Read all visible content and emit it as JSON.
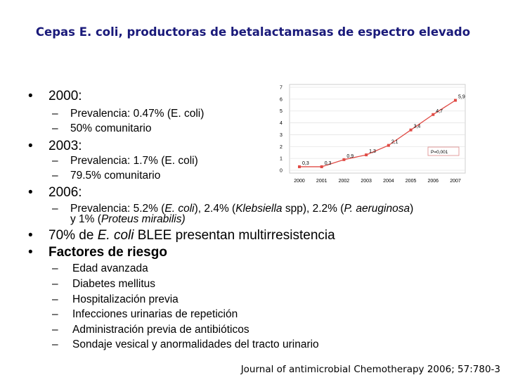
{
  "title": "Cepas E. coli, productoras de betalactamasas de espectro elevado",
  "bullets": {
    "y2000": {
      "year": "2000",
      "colon": ":",
      "lines": [
        "Prevalencia: 0.47% (E. coli)",
        "50% comunitario"
      ]
    },
    "y2003": {
      "year": "2003",
      "colon": ":",
      "lines": [
        "Prevalencia: 1.7% (E. coli)",
        "79.5% comunitario"
      ]
    },
    "y2006": {
      "year": "2006",
      "colon": ":",
      "line_a": "Prevalencia: 5.2%  (",
      "line_a_it1": "E. coli",
      "line_a_b": "), 2.4% (",
      "line_a_it2": "Klebsiella",
      "line_a_c": " spp), 2.2% (",
      "line_a_it3": "P. aeruginosa",
      "line_a_d": ")",
      "line_b": "y 1% (",
      "line_b_it": "Proteus mirabilis)"
    },
    "blee": {
      "pre": "70%  de ",
      "italic": "E. coli",
      "post": " BLEE presentan multirresistencia"
    },
    "factors": {
      "heading": "Factores de riesgo",
      "items": [
        "Edad avanzada",
        "Diabetes mellitus",
        "Hospitalización previa",
        "Infecciones urinarias de repetición",
        "Administración previa de antibióticos",
        "Sondaje vesical y anormalidades del tracto urinario"
      ]
    }
  },
  "bullet_char": "•",
  "dash_char": "–",
  "citation": "Journal of antimicrobial Chemotherapy 2006; 57:780-3",
  "chart_data": {
    "type": "line",
    "x": [
      "2000",
      "2001",
      "2002",
      "2003",
      "2004",
      "2005",
      "2006",
      "2007"
    ],
    "series": [
      {
        "values": [
          0.3,
          0.3,
          0.9,
          1.3,
          2.1,
          3.4,
          4.7,
          5.9
        ]
      }
    ],
    "data_labels": [
      "0,3",
      "0,3",
      "0,9",
      "1,3",
      "2,1",
      "3,4",
      "4,7",
      "5,9"
    ],
    "yticks": [
      "0",
      "1",
      "2",
      "3",
      "4",
      "5",
      "6",
      "7"
    ],
    "ylim": [
      0,
      7
    ],
    "annotation": "P=0,001",
    "grid": true,
    "line_color": "#e04b45",
    "title": "",
    "xlabel": "",
    "ylabel": ""
  }
}
